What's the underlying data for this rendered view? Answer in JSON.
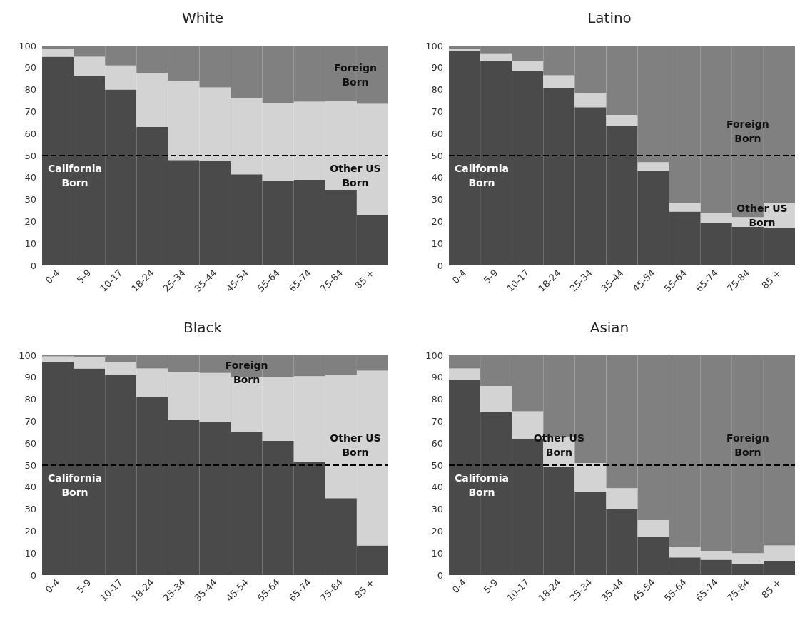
{
  "chart_data": [
    {
      "type": "bar",
      "title": "White",
      "stacked": true,
      "categories": [
        "0-4",
        "5-9",
        "10-17",
        "18-24",
        "25-34",
        "35-44",
        "45-54",
        "55-64",
        "65-74",
        "75-84",
        "85 +"
      ],
      "ylim": [
        0,
        100
      ],
      "yticks": [
        0,
        10,
        20,
        30,
        40,
        50,
        60,
        70,
        80,
        90,
        100
      ],
      "grid": false,
      "legend": false,
      "series": [
        {
          "name": "California Born",
          "color": "#4a4a4a",
          "values": [
            95,
            86,
            80,
            63,
            48,
            47.5,
            41.5,
            38.5,
            39,
            34.5,
            23
          ]
        },
        {
          "name": "Other US Born",
          "color": "#d3d3d3",
          "values": [
            3.5,
            9,
            11,
            24.5,
            36,
            33.5,
            34.5,
            35.5,
            35.5,
            40.5,
            50.5
          ]
        },
        {
          "name": "Foreign Born",
          "color": "#808080",
          "values": [
            1.5,
            5,
            9,
            12.5,
            16,
            19,
            24,
            26,
            25.5,
            25,
            26.5
          ]
        }
      ],
      "ref_lines": [
        {
          "axis": "y",
          "value": 50,
          "color": "#000000",
          "line_style": "dashed"
        }
      ]
    },
    {
      "type": "bar",
      "title": "Latino",
      "stacked": true,
      "categories": [
        "0-4",
        "5-9",
        "10-17",
        "18-24",
        "25-34",
        "35-44",
        "45-54",
        "55-64",
        "65-74",
        "75-84",
        "85 +"
      ],
      "ylim": [
        0,
        100
      ],
      "yticks": [
        0,
        10,
        20,
        30,
        40,
        50,
        60,
        70,
        80,
        90,
        100
      ],
      "grid": false,
      "legend": false,
      "series": [
        {
          "name": "California Born",
          "color": "#4a4a4a",
          "values": [
            97.5,
            93,
            88.5,
            80.5,
            72,
            63.5,
            43,
            24.5,
            19.5,
            17.5,
            17
          ]
        },
        {
          "name": "Other US Born",
          "color": "#d3d3d3",
          "values": [
            1,
            3.5,
            4.5,
            6,
            6.5,
            5,
            4,
            4,
            4.5,
            4.5,
            11.5
          ]
        },
        {
          "name": "Foreign Born",
          "color": "#808080",
          "values": [
            1.5,
            3.5,
            7,
            13.5,
            21.5,
            31.5,
            53,
            71.5,
            76,
            78,
            71.5
          ]
        }
      ],
      "ref_lines": [
        {
          "axis": "y",
          "value": 50,
          "color": "#000000",
          "line_style": "dashed"
        }
      ]
    },
    {
      "type": "bar",
      "title": "Black",
      "stacked": true,
      "categories": [
        "0-4",
        "5-9",
        "10-17",
        "18-24",
        "25-34",
        "35-44",
        "45-54",
        "55-64",
        "65-74",
        "75-84",
        "85 +"
      ],
      "ylim": [
        0,
        100
      ],
      "yticks": [
        0,
        10,
        20,
        30,
        40,
        50,
        60,
        70,
        80,
        90,
        100
      ],
      "grid": false,
      "legend": false,
      "series": [
        {
          "name": "California Born",
          "color": "#4a4a4a",
          "values": [
            97,
            94,
            91,
            81,
            70.5,
            69.5,
            65,
            61,
            51.5,
            35,
            13.5
          ]
        },
        {
          "name": "Other US Born",
          "color": "#d3d3d3",
          "values": [
            2.5,
            5,
            6,
            13,
            22,
            22.5,
            25,
            29,
            39,
            56,
            79.5
          ]
        },
        {
          "name": "Foreign Born",
          "color": "#808080",
          "values": [
            0.5,
            1,
            3,
            6,
            7.5,
            8,
            10,
            10,
            9.5,
            9,
            7
          ]
        }
      ],
      "ref_lines": [
        {
          "axis": "y",
          "value": 50,
          "color": "#000000",
          "line_style": "dashed"
        }
      ]
    },
    {
      "type": "bar",
      "title": "Asian",
      "stacked": true,
      "categories": [
        "0-4",
        "5-9",
        "10-17",
        "18-24",
        "25-34",
        "35-44",
        "45-54",
        "55-64",
        "65-74",
        "75-84",
        "85 +"
      ],
      "ylim": [
        0,
        100
      ],
      "yticks": [
        0,
        10,
        20,
        30,
        40,
        50,
        60,
        70,
        80,
        90,
        100
      ],
      "grid": false,
      "legend": false,
      "series": [
        {
          "name": "California Born",
          "color": "#4a4a4a",
          "values": [
            89,
            74,
            62,
            49,
            38,
            30,
            17.5,
            8,
            7,
            5,
            6.5
          ]
        },
        {
          "name": "Other US Born",
          "color": "#d3d3d3",
          "values": [
            5,
            12,
            12.5,
            14,
            13,
            9.5,
            7.5,
            5,
            4,
            5,
            7
          ]
        },
        {
          "name": "Foreign Born",
          "color": "#808080",
          "values": [
            6,
            14,
            25.5,
            37,
            49,
            60.5,
            75,
            87,
            89,
            90,
            86.5
          ]
        }
      ],
      "ref_lines": [
        {
          "axis": "y",
          "value": 50,
          "color": "#000000",
          "line_style": "dashed"
        }
      ]
    }
  ]
}
